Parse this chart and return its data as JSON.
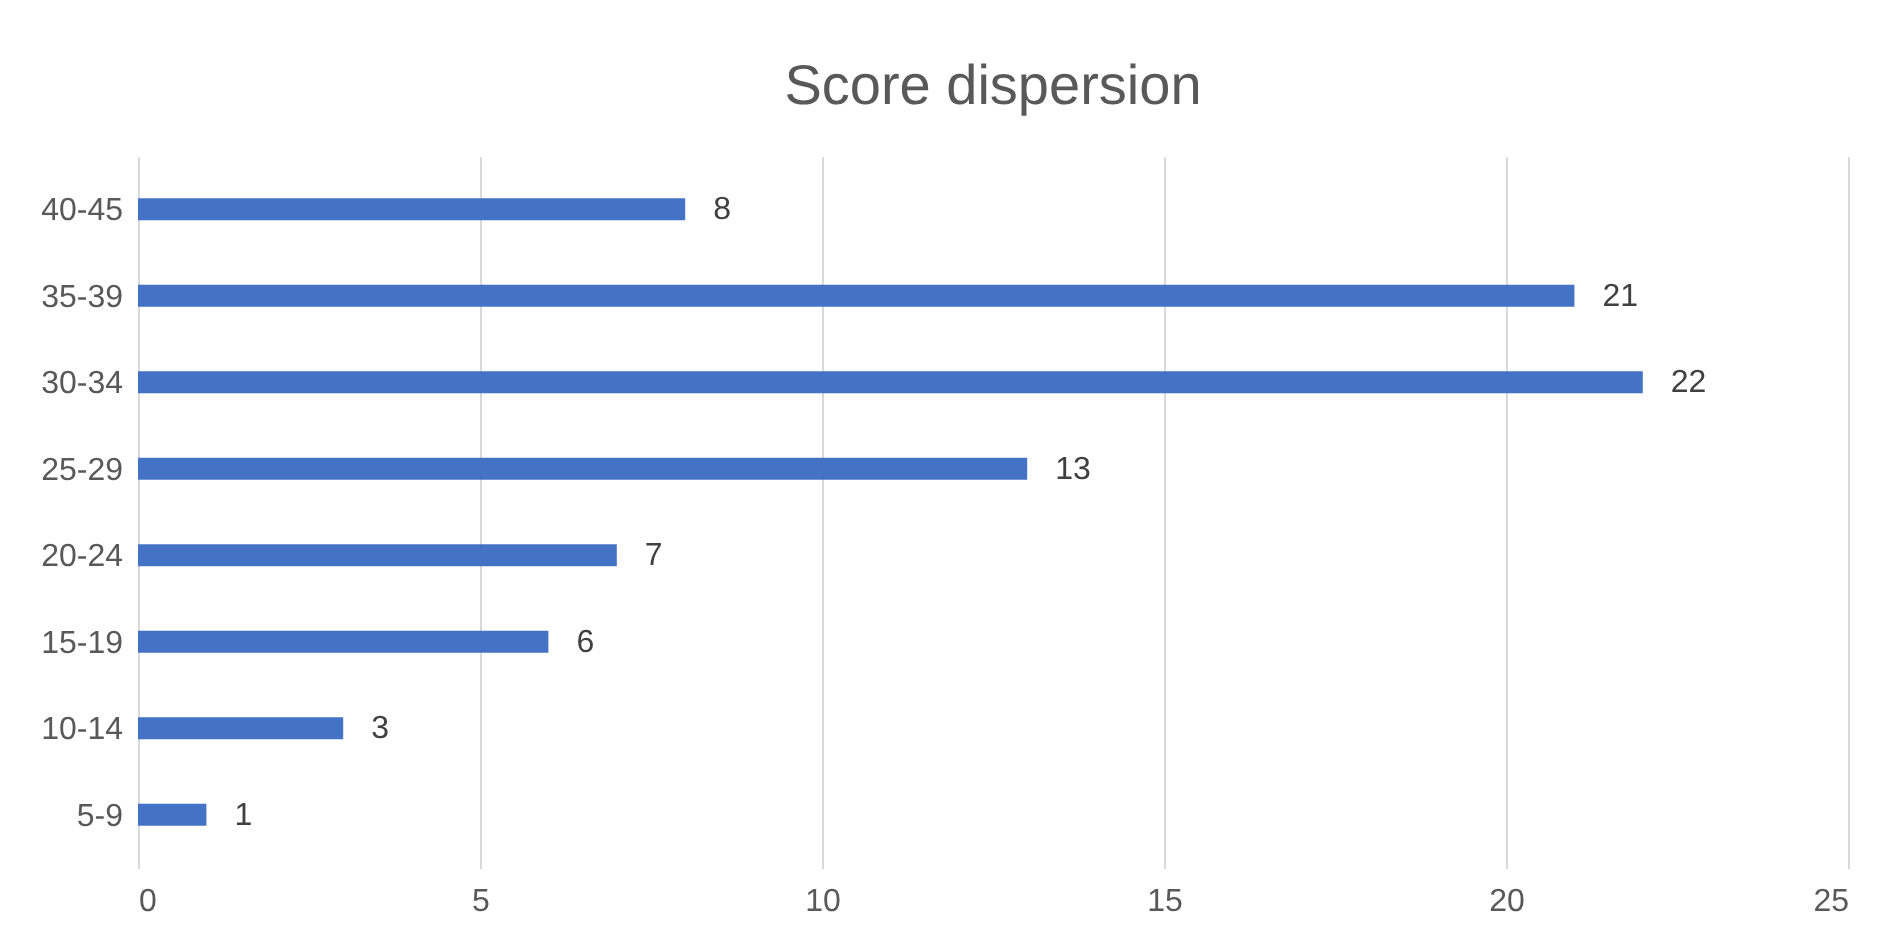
{
  "chart_data": {
    "type": "bar",
    "orientation": "horizontal",
    "title": "Score dispersion",
    "categories": [
      "40-45",
      "35-39",
      "30-34",
      "25-29",
      "20-24",
      "15-19",
      "10-14",
      "5-9"
    ],
    "values": [
      8,
      21,
      22,
      13,
      7,
      6,
      3,
      1
    ],
    "color": "#4472c4",
    "xlim": [
      0,
      25
    ],
    "xticks": [
      0,
      5,
      10,
      15,
      20,
      25
    ],
    "grid": "x",
    "data_labels": true
  }
}
